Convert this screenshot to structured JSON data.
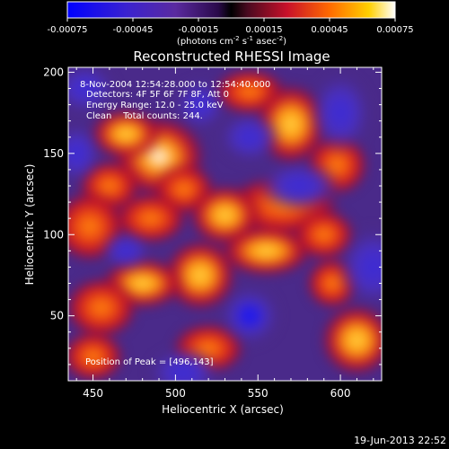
{
  "chart_data": {
    "type": "heatmap",
    "title": "Reconstructed RHESSI Image",
    "xlabel": "Heliocentric X (arcsec)",
    "ylabel": "Heliocentric Y (arcsec)",
    "xlim": [
      435,
      625
    ],
    "ylim": [
      10,
      203
    ],
    "x_ticks": [
      450,
      500,
      550,
      600
    ],
    "y_ticks": [
      50,
      100,
      150,
      200
    ],
    "colorbar": {
      "range": [
        -0.00075,
        0.00075
      ],
      "ticks": [
        "-0.00075",
        "-0.00045",
        "-0.00015",
        "0.00015",
        "0.00045",
        "0.00075"
      ],
      "unit_prefix": "(photons cm",
      "unit_exp1": "-2",
      "unit_mid1": " s",
      "unit_exp2": "-1",
      "unit_mid2": " asec",
      "unit_exp3": "-2",
      "unit_suffix": ")"
    },
    "annotations": [
      "8-Nov-2004 12:54:28.000 to 12:54:40.000",
      "Detectors: 4F 5F 6F 7F 8F, Att 0",
      "Energy Range: 12.0 - 25.0 keV",
      "Clean    Total counts: 244."
    ],
    "peak_label": "Position of Peak = [496,143]",
    "peak": [
      496,
      143
    ],
    "blobs": [
      {
        "x": 490,
        "y": 148,
        "sx": 18,
        "sy": 16,
        "v": 1.0
      },
      {
        "x": 470,
        "y": 162,
        "sx": 14,
        "sy": 10,
        "v": 0.75
      },
      {
        "x": 505,
        "y": 128,
        "sx": 12,
        "sy": 10,
        "v": 0.6
      },
      {
        "x": 460,
        "y": 130,
        "sx": 12,
        "sy": 10,
        "v": 0.55
      },
      {
        "x": 448,
        "y": 105,
        "sx": 14,
        "sy": 14,
        "v": 0.7
      },
      {
        "x": 485,
        "y": 110,
        "sx": 14,
        "sy": 10,
        "v": 0.6
      },
      {
        "x": 545,
        "y": 188,
        "sx": 14,
        "sy": 9,
        "v": 0.55
      },
      {
        "x": 570,
        "y": 168,
        "sx": 14,
        "sy": 16,
        "v": 0.8
      },
      {
        "x": 598,
        "y": 143,
        "sx": 12,
        "sy": 12,
        "v": 0.6
      },
      {
        "x": 565,
        "y": 118,
        "sx": 22,
        "sy": 12,
        "v": 0.7
      },
      {
        "x": 530,
        "y": 112,
        "sx": 14,
        "sy": 12,
        "v": 0.75
      },
      {
        "x": 555,
        "y": 90,
        "sx": 18,
        "sy": 10,
        "v": 0.85
      },
      {
        "x": 590,
        "y": 100,
        "sx": 12,
        "sy": 10,
        "v": 0.6
      },
      {
        "x": 515,
        "y": 75,
        "sx": 14,
        "sy": 14,
        "v": 0.8
      },
      {
        "x": 480,
        "y": 70,
        "sx": 16,
        "sy": 10,
        "v": 0.75
      },
      {
        "x": 455,
        "y": 55,
        "sx": 14,
        "sy": 12,
        "v": 0.55
      },
      {
        "x": 610,
        "y": 35,
        "sx": 14,
        "sy": 14,
        "v": 0.85
      },
      {
        "x": 595,
        "y": 70,
        "sx": 10,
        "sy": 10,
        "v": 0.45
      },
      {
        "x": 450,
        "y": 25,
        "sx": 12,
        "sy": 10,
        "v": 0.35
      },
      {
        "x": 520,
        "y": 30,
        "sx": 14,
        "sy": 10,
        "v": 0.3
      },
      {
        "x": 545,
        "y": 50,
        "sx": 12,
        "sy": 12,
        "v": -0.9
      },
      {
        "x": 575,
        "y": 130,
        "sx": 16,
        "sy": 10,
        "v": -0.6
      },
      {
        "x": 545,
        "y": 160,
        "sx": 12,
        "sy": 10,
        "v": -0.55
      },
      {
        "x": 600,
        "y": 175,
        "sx": 12,
        "sy": 16,
        "v": -0.7
      },
      {
        "x": 620,
        "y": 80,
        "sx": 14,
        "sy": 16,
        "v": -0.7
      },
      {
        "x": 445,
        "y": 190,
        "sx": 12,
        "sy": 10,
        "v": -0.4
      },
      {
        "x": 440,
        "y": 150,
        "sx": 10,
        "sy": 12,
        "v": -0.35
      },
      {
        "x": 505,
        "y": 15,
        "sx": 14,
        "sy": 10,
        "v": -0.45
      },
      {
        "x": 470,
        "y": 90,
        "sx": 10,
        "sy": 8,
        "v": -0.3
      },
      {
        "x": 515,
        "y": 180,
        "sx": 10,
        "sy": 10,
        "v": -0.2
      }
    ]
  },
  "footer": {
    "timestamp": "19-Jun-2013 22:52"
  }
}
